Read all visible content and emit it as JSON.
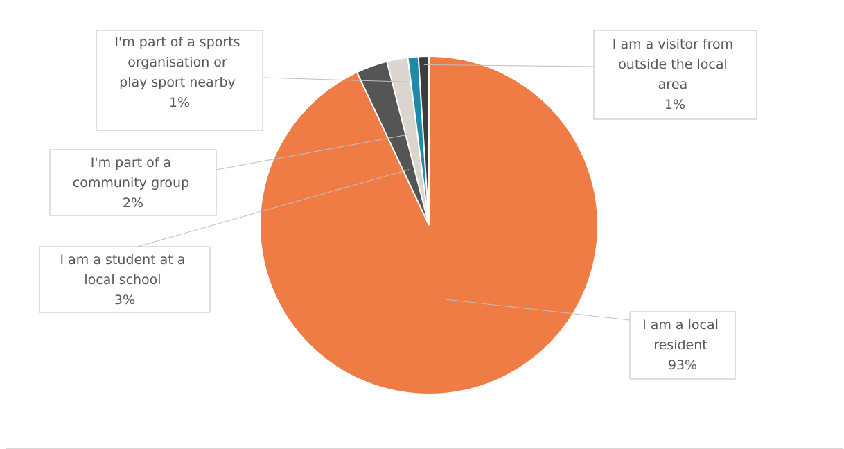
{
  "chart_data": {
    "type": "pie",
    "title": "",
    "slices": [
      {
        "label": "I am a local resident",
        "value": 93,
        "value_label": "93%",
        "color": "#f07c45"
      },
      {
        "label": "I am a student at a local school",
        "value": 3,
        "value_label": "3%",
        "color": "#555555"
      },
      {
        "label": "I'm part of a community group",
        "value": 2,
        "value_label": "2%",
        "color": "#dcd5cf"
      },
      {
        "label": "I'm part of a sports organisation or play sport nearby",
        "value": 1,
        "value_label": "1%",
        "color": "#1f8aa6"
      },
      {
        "label": "I am a visitor from outside the local area",
        "value": 1,
        "value_label": "1%",
        "color": "#3d3d3d"
      }
    ],
    "legend": "none",
    "data_labels": "callouts with leader lines"
  },
  "labels": [
    {
      "lines": [
        "I am a local",
        "resident"
      ],
      "pct": "93%"
    },
    {
      "lines": [
        "I am a student at a",
        "local school"
      ],
      "pct": "3%"
    },
    {
      "lines": [
        "I'm part of a",
        "community group"
      ],
      "pct": "2%"
    },
    {
      "lines": [
        "I'm part of a sports",
        "organisation or",
        "play sport nearby"
      ],
      "pct": "1%"
    },
    {
      "lines": [
        "I am a visitor from",
        "outside the local",
        "area"
      ],
      "pct": "1%"
    }
  ]
}
